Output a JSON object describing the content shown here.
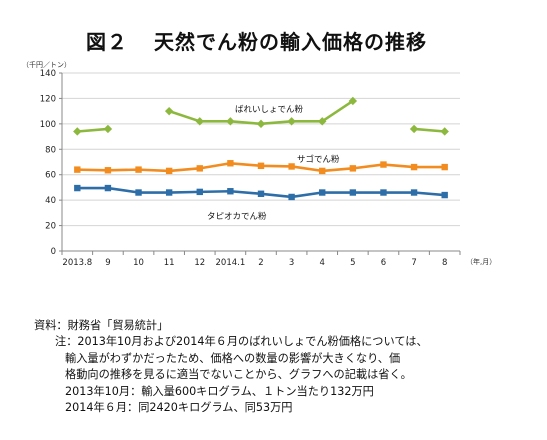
{
  "title": {
    "number": "図２",
    "text": "天然でん粉の輸入価格の推移"
  },
  "chart_data": {
    "type": "line",
    "ylabel": "（千円／トン）",
    "xlabel": "（年,月）",
    "ylim": [
      0,
      140
    ],
    "yticks": [
      0,
      20,
      40,
      60,
      80,
      100,
      120,
      140
    ],
    "grid": true,
    "categories": [
      "2013.8",
      "9",
      "10",
      "11",
      "12",
      "2014.1",
      "2",
      "3",
      "4",
      "5",
      "6",
      "7",
      "8"
    ],
    "series": [
      {
        "name": "ばれいしょでん粉",
        "color": "#8DB83E",
        "marker": "diamond",
        "values": [
          94,
          96,
          null,
          110,
          102,
          102,
          100,
          102,
          102,
          118,
          null,
          96,
          94
        ]
      },
      {
        "name": "サゴでん粉",
        "color": "#F28C1F",
        "marker": "square",
        "values": [
          64,
          63.5,
          64,
          63,
          65,
          69,
          67,
          66.5,
          63,
          65,
          68,
          66,
          66
        ]
      },
      {
        "name": "タピオカでん粉",
        "color": "#2D6EA8",
        "marker": "square",
        "values": [
          49.5,
          49.5,
          46,
          46,
          46.5,
          47,
          45,
          42.5,
          46,
          46,
          46,
          46,
          44
        ]
      }
    ]
  },
  "notes": {
    "source": "資料：財務省「貿易統計」",
    "note_lines": [
      "注：2013年10月および2014年６月のばれいしょでん粉価格については、",
      "輸入量がわずかだったため、価格への数量の影響が大きくなり、価",
      "格動向の推移を見るに適当でないことから、グラフへの記載は省く。",
      "2013年10月：輸入量600キログラム、１トン当たり132万円",
      "2014年６月：同2420キログラム、同53万円"
    ]
  }
}
